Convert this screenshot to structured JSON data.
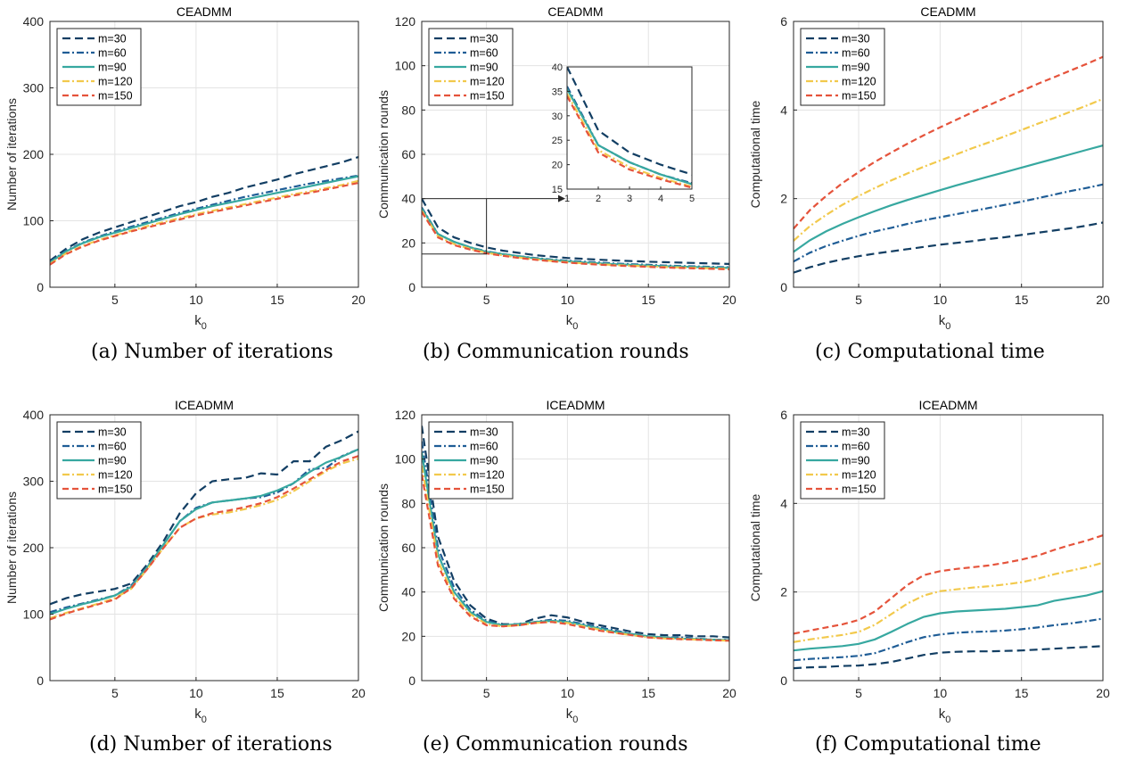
{
  "series_styles": [
    {
      "name": "m=30",
      "color": "#123e63",
      "dash": "9,5"
    },
    {
      "name": "m=60",
      "color": "#1f5d96",
      "dash": "8,3,2,3"
    },
    {
      "name": "m=90",
      "color": "#37a8a0",
      "dash": ""
    },
    {
      "name": "m=120",
      "color": "#f2c94c",
      "dash": "8,3,2,3"
    },
    {
      "name": "m=150",
      "color": "#e5533b",
      "dash": "7,4"
    }
  ],
  "chart_data": [
    {
      "type": "line",
      "title": "CEADMM",
      "caption": "(a) Number of iterations",
      "xlabel": "k",
      "xlabel_sub": "0",
      "ylabel": "Number of iterations",
      "xlim": [
        1,
        20
      ],
      "ylim": [
        0,
        400
      ],
      "xticks": [
        5,
        10,
        15,
        20
      ],
      "yticks": [
        0,
        100,
        200,
        300,
        400
      ],
      "grid": true,
      "legend_position": "top-left",
      "x": [
        1,
        2,
        3,
        4,
        5,
        6,
        7,
        8,
        9,
        10,
        11,
        12,
        13,
        14,
        15,
        16,
        17,
        18,
        19,
        20
      ],
      "series": [
        {
          "name": "m=30",
          "values": [
            40,
            58,
            72,
            82,
            90,
            98,
            106,
            114,
            122,
            128,
            136,
            142,
            150,
            156,
            162,
            170,
            176,
            182,
            188,
            196
          ]
        },
        {
          "name": "m=60",
          "values": [
            38,
            55,
            67,
            76,
            84,
            91,
            98,
            105,
            112,
            118,
            124,
            130,
            136,
            141,
            146,
            151,
            156,
            160,
            164,
            168
          ]
        },
        {
          "name": "m=90",
          "values": [
            37,
            54,
            66,
            75,
            82,
            89,
            96,
            103,
            110,
            116,
            122,
            127,
            132,
            137,
            142,
            147,
            152,
            157,
            162,
            167
          ]
        },
        {
          "name": "m=120",
          "values": [
            35,
            51,
            62,
            71,
            78,
            85,
            92,
            98,
            104,
            110,
            115,
            120,
            125,
            130,
            135,
            140,
            144,
            149,
            154,
            160
          ]
        },
        {
          "name": "m=150",
          "values": [
            34,
            50,
            61,
            70,
            77,
            84,
            90,
            96,
            102,
            108,
            113,
            118,
            123,
            128,
            133,
            138,
            142,
            147,
            152,
            157
          ]
        }
      ]
    },
    {
      "type": "line",
      "title": "CEADMM",
      "caption": "(b) Communication rounds",
      "xlabel": "k",
      "xlabel_sub": "0",
      "ylabel": "Communication rounds",
      "xlim": [
        1,
        20
      ],
      "ylim": [
        0,
        120
      ],
      "xticks": [
        5,
        10,
        15,
        20
      ],
      "yticks": [
        0,
        20,
        40,
        60,
        80,
        100,
        120
      ],
      "grid": true,
      "legend_position": "top-left",
      "x": [
        1,
        2,
        3,
        4,
        5,
        6,
        7,
        8,
        9,
        10,
        11,
        12,
        13,
        14,
        15,
        16,
        17,
        18,
        19,
        20
      ],
      "series": [
        {
          "name": "m=30",
          "values": [
            40,
            27,
            22.5,
            20,
            18,
            16.5,
            15.5,
            14.5,
            13.8,
            13.2,
            12.8,
            12.4,
            12.1,
            11.8,
            11.5,
            11.3,
            11.1,
            10.9,
            10.7,
            10.5
          ]
        },
        {
          "name": "m=60",
          "values": [
            36,
            24,
            20.5,
            18,
            16.2,
            15,
            14,
            13.2,
            12.5,
            12,
            11.5,
            11.1,
            10.7,
            10.4,
            10.1,
            9.8,
            9.6,
            9.4,
            9.2,
            9
          ]
        },
        {
          "name": "m=90",
          "values": [
            35.5,
            24,
            20.5,
            18,
            16,
            15,
            14,
            13,
            12.3,
            11.7,
            11.2,
            10.8,
            10.4,
            10.1,
            9.8,
            9.5,
            9.3,
            9.1,
            8.9,
            8.7
          ]
        },
        {
          "name": "m=120",
          "values": [
            34.5,
            23,
            19.5,
            17.3,
            15.5,
            14.4,
            13.4,
            12.6,
            11.9,
            11.3,
            10.8,
            10.4,
            10,
            9.7,
            9.4,
            9.1,
            8.9,
            8.7,
            8.5,
            8.3
          ]
        },
        {
          "name": "m=150",
          "values": [
            34,
            22.5,
            19,
            17,
            15.3,
            14.2,
            13.2,
            12.4,
            11.7,
            11.1,
            10.6,
            10.2,
            9.8,
            9.5,
            9.2,
            8.9,
            8.7,
            8.5,
            8.3,
            8.1
          ]
        }
      ],
      "inset": {
        "xlim": [
          1,
          5
        ],
        "ylim": [
          15,
          40
        ],
        "xticks": [
          1,
          2,
          3,
          4,
          5
        ],
        "yticks": [
          15,
          20,
          25,
          30,
          35,
          40
        ]
      }
    },
    {
      "type": "line",
      "title": "CEADMM",
      "caption": "(c) Computational time",
      "xlabel": "k",
      "xlabel_sub": "0",
      "ylabel": "Computational time",
      "xlim": [
        1,
        20
      ],
      "ylim": [
        0,
        6
      ],
      "xticks": [
        5,
        10,
        15,
        20
      ],
      "yticks": [
        0,
        2,
        4,
        6
      ],
      "grid": true,
      "legend_position": "top-left",
      "x": [
        1,
        2,
        3,
        4,
        5,
        6,
        7,
        8,
        9,
        10,
        11,
        12,
        13,
        14,
        15,
        16,
        17,
        18,
        19,
        20
      ],
      "series": [
        {
          "name": "m=30",
          "values": [
            0.33,
            0.45,
            0.55,
            0.63,
            0.7,
            0.76,
            0.81,
            0.86,
            0.91,
            0.96,
            1.0,
            1.04,
            1.09,
            1.13,
            1.18,
            1.23,
            1.28,
            1.33,
            1.39,
            1.46
          ]
        },
        {
          "name": "m=60",
          "values": [
            0.58,
            0.78,
            0.93,
            1.05,
            1.16,
            1.26,
            1.34,
            1.43,
            1.51,
            1.58,
            1.65,
            1.72,
            1.79,
            1.86,
            1.93,
            2.01,
            2.09,
            2.17,
            2.24,
            2.32
          ]
        },
        {
          "name": "m=90",
          "values": [
            0.8,
            1.06,
            1.26,
            1.43,
            1.58,
            1.72,
            1.85,
            1.97,
            2.08,
            2.19,
            2.3,
            2.4,
            2.5,
            2.6,
            2.7,
            2.8,
            2.9,
            3.0,
            3.1,
            3.2
          ]
        },
        {
          "name": "m=120",
          "values": [
            1.05,
            1.38,
            1.63,
            1.86,
            2.06,
            2.24,
            2.41,
            2.57,
            2.72,
            2.86,
            3.0,
            3.14,
            3.27,
            3.41,
            3.55,
            3.69,
            3.82,
            3.96,
            4.1,
            4.25
          ]
        },
        {
          "name": "m=150",
          "values": [
            1.32,
            1.74,
            2.06,
            2.35,
            2.6,
            2.83,
            3.04,
            3.24,
            3.43,
            3.61,
            3.78,
            3.95,
            4.11,
            4.27,
            4.43,
            4.59,
            4.74,
            4.89,
            5.04,
            5.2
          ]
        }
      ]
    },
    {
      "type": "line",
      "title": "ICEADMM",
      "caption": "(d) Number of iterations",
      "xlabel": "k",
      "xlabel_sub": "0",
      "ylabel": "Number of iterations",
      "xlim": [
        1,
        20
      ],
      "ylim": [
        0,
        400
      ],
      "xticks": [
        5,
        10,
        15,
        20
      ],
      "yticks": [
        0,
        100,
        200,
        300,
        400
      ],
      "grid": true,
      "legend_position": "top-left",
      "x": [
        1,
        2,
        3,
        4,
        5,
        6,
        7,
        8,
        9,
        10,
        11,
        12,
        13,
        14,
        15,
        16,
        17,
        18,
        19,
        20
      ],
      "series": [
        {
          "name": "m=30",
          "values": [
            115,
            124,
            130,
            134,
            138,
            146,
            175,
            210,
            252,
            282,
            300,
            303,
            305,
            312,
            310,
            330,
            330,
            352,
            362,
            375
          ]
        },
        {
          "name": "m=60",
          "values": [
            103,
            110,
            116,
            122,
            128,
            143,
            172,
            205,
            240,
            260,
            268,
            271,
            274,
            276,
            283,
            297,
            318,
            320,
            338,
            348
          ]
        },
        {
          "name": "m=90",
          "values": [
            100,
            108,
            115,
            121,
            128,
            141,
            171,
            205,
            240,
            258,
            268,
            271,
            274,
            278,
            286,
            297,
            314,
            328,
            337,
            348
          ]
        },
        {
          "name": "m=120",
          "values": [
            94,
            102,
            109,
            116,
            124,
            138,
            168,
            200,
            230,
            244,
            250,
            253,
            258,
            264,
            272,
            285,
            300,
            315,
            327,
            334
          ]
        },
        {
          "name": "m=150",
          "values": [
            92,
            101,
            108,
            115,
            122,
            139,
            168,
            200,
            230,
            244,
            252,
            256,
            261,
            267,
            276,
            289,
            303,
            317,
            330,
            338
          ]
        }
      ]
    },
    {
      "type": "line",
      "title": "ICEADMM",
      "caption": "(e) Communication rounds",
      "xlabel": "k",
      "xlabel_sub": "0",
      "ylabel": "Communication rounds",
      "xlim": [
        1,
        20
      ],
      "ylim": [
        0,
        120
      ],
      "xticks": [
        5,
        10,
        15,
        20
      ],
      "yticks": [
        0,
        20,
        40,
        60,
        80,
        100,
        120
      ],
      "grid": true,
      "legend_position": "top-left",
      "x": [
        1,
        2,
        3,
        4,
        5,
        6,
        7,
        8,
        9,
        10,
        11,
        12,
        13,
        14,
        15,
        16,
        17,
        18,
        19,
        20
      ],
      "series": [
        {
          "name": "m=30",
          "values": [
            115,
            65,
            45,
            34,
            28,
            25.5,
            25.5,
            28,
            29.5,
            28.5,
            26.5,
            25,
            23.5,
            22,
            21,
            20.5,
            20.5,
            20,
            20,
            19.5
          ]
        },
        {
          "name": "m=60",
          "values": [
            108,
            60,
            42,
            32,
            27,
            25,
            25,
            26.5,
            27.5,
            27,
            25.5,
            24,
            22.5,
            21,
            20,
            19.5,
            19.5,
            19,
            18.5,
            18.5
          ]
        },
        {
          "name": "m=90",
          "values": [
            103,
            57,
            40,
            31,
            26.5,
            25,
            25.5,
            26.5,
            27,
            26.5,
            25,
            23.5,
            22,
            21,
            20,
            19.5,
            19,
            18.8,
            18.5,
            18.3
          ]
        },
        {
          "name": "m=120",
          "values": [
            97,
            54,
            38,
            30,
            25.5,
            24.5,
            25,
            26,
            26.5,
            26,
            24.5,
            23,
            21.5,
            20.5,
            19.5,
            19,
            18.8,
            18.5,
            18.3,
            18
          ]
        },
        {
          "name": "m=150",
          "values": [
            93,
            52,
            37,
            29,
            25,
            24.5,
            25,
            26,
            26.5,
            25.5,
            24,
            22.5,
            21.5,
            20.5,
            19.5,
            19,
            18.7,
            18.5,
            18.2,
            18
          ]
        }
      ]
    },
    {
      "type": "line",
      "title": "ICEADMM",
      "caption": "(f) Computational time",
      "xlabel": "k",
      "xlabel_sub": "0",
      "ylabel": "Computational time",
      "xlim": [
        1,
        20
      ],
      "ylim": [
        0,
        6
      ],
      "xticks": [
        5,
        10,
        15,
        20
      ],
      "yticks": [
        0,
        2,
        4,
        6
      ],
      "grid": true,
      "legend_position": "top-left",
      "x": [
        1,
        2,
        3,
        4,
        5,
        6,
        7,
        8,
        9,
        10,
        11,
        12,
        13,
        14,
        15,
        16,
        17,
        18,
        19,
        20
      ],
      "series": [
        {
          "name": "m=30",
          "values": [
            0.28,
            0.3,
            0.31,
            0.33,
            0.34,
            0.37,
            0.42,
            0.5,
            0.58,
            0.63,
            0.65,
            0.66,
            0.66,
            0.67,
            0.68,
            0.7,
            0.72,
            0.74,
            0.76,
            0.78
          ]
        },
        {
          "name": "m=60",
          "values": [
            0.46,
            0.49,
            0.51,
            0.53,
            0.56,
            0.62,
            0.74,
            0.87,
            0.98,
            1.04,
            1.08,
            1.1,
            1.11,
            1.13,
            1.16,
            1.2,
            1.25,
            1.29,
            1.34,
            1.4
          ]
        },
        {
          "name": "m=90",
          "values": [
            0.68,
            0.72,
            0.75,
            0.78,
            0.83,
            0.93,
            1.1,
            1.28,
            1.44,
            1.52,
            1.56,
            1.58,
            1.6,
            1.62,
            1.66,
            1.7,
            1.8,
            1.86,
            1.92,
            2.02
          ]
        },
        {
          "name": "m=120",
          "values": [
            0.87,
            0.93,
            0.98,
            1.03,
            1.1,
            1.26,
            1.5,
            1.74,
            1.92,
            2.02,
            2.06,
            2.1,
            2.13,
            2.17,
            2.22,
            2.3,
            2.4,
            2.48,
            2.56,
            2.66
          ]
        },
        {
          "name": "m=150",
          "values": [
            1.06,
            1.13,
            1.2,
            1.27,
            1.37,
            1.56,
            1.86,
            2.16,
            2.38,
            2.47,
            2.52,
            2.56,
            2.6,
            2.66,
            2.73,
            2.82,
            2.95,
            3.06,
            3.16,
            3.28
          ]
        }
      ]
    }
  ]
}
